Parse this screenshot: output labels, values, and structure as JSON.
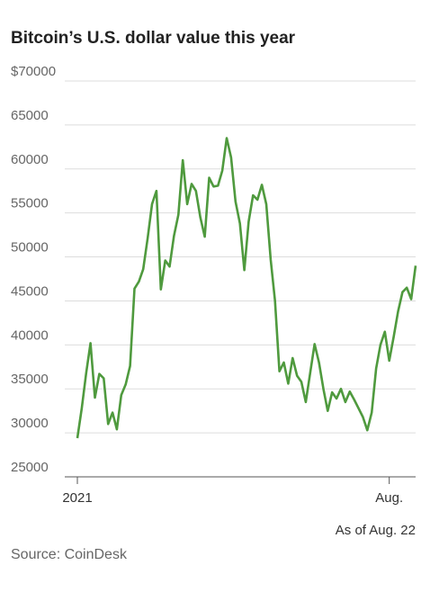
{
  "chart_data": {
    "type": "line",
    "title": "Bitcoin’s U.S. dollar value this year",
    "note": "As of Aug. 22",
    "source": "Source: CoinDesk",
    "categories": [
      "2021",
      null,
      null,
      null,
      null,
      null,
      null,
      null,
      null,
      null,
      null,
      null,
      null,
      null,
      null,
      null,
      null,
      null,
      null,
      null,
      null,
      null,
      null,
      null,
      null,
      null,
      null,
      null,
      null,
      null,
      null,
      null,
      null,
      null,
      null,
      null,
      null,
      null,
      null,
      null,
      null,
      null,
      null,
      null,
      null,
      null,
      null,
      null,
      null,
      null,
      null,
      null,
      null,
      null,
      null,
      null,
      null,
      null,
      null,
      null,
      null,
      null,
      null,
      null,
      null,
      null,
      null,
      null,
      null,
      null,
      null,
      "Aug.",
      null,
      null,
      null,
      null,
      null,
      null
    ],
    "values": [
      29400,
      32800,
      36800,
      40200,
      34000,
      36700,
      36200,
      31000,
      32300,
      30400,
      34300,
      35500,
      37600,
      46400,
      47200,
      48600,
      52100,
      56000,
      57500,
      46300,
      49600,
      48900,
      52400,
      54800,
      61000,
      56000,
      58300,
      57500,
      54500,
      52300,
      59000,
      58000,
      58100,
      59800,
      63500,
      61300,
      56300,
      53800,
      48500,
      54000,
      57000,
      56500,
      58200,
      56000,
      49700,
      45000,
      37000,
      38000,
      35600,
      38500,
      36500,
      35800,
      33500,
      36800,
      40100,
      38000,
      35000,
      32500,
      34600,
      33900,
      35000,
      33500,
      34700,
      33800,
      32800,
      31800,
      30300,
      32300,
      37300,
      40000,
      41500,
      38200,
      40900,
      43800,
      46000,
      46500,
      45200,
      49000
    ],
    "color": "#4f9a3e",
    "ylim": [
      25000,
      70000
    ],
    "yticks": [
      25000,
      30000,
      35000,
      40000,
      45000,
      50000,
      55000,
      60000,
      65000,
      {
        "value": 70000,
        "label": "$70000"
      }
    ],
    "grid": true
  }
}
